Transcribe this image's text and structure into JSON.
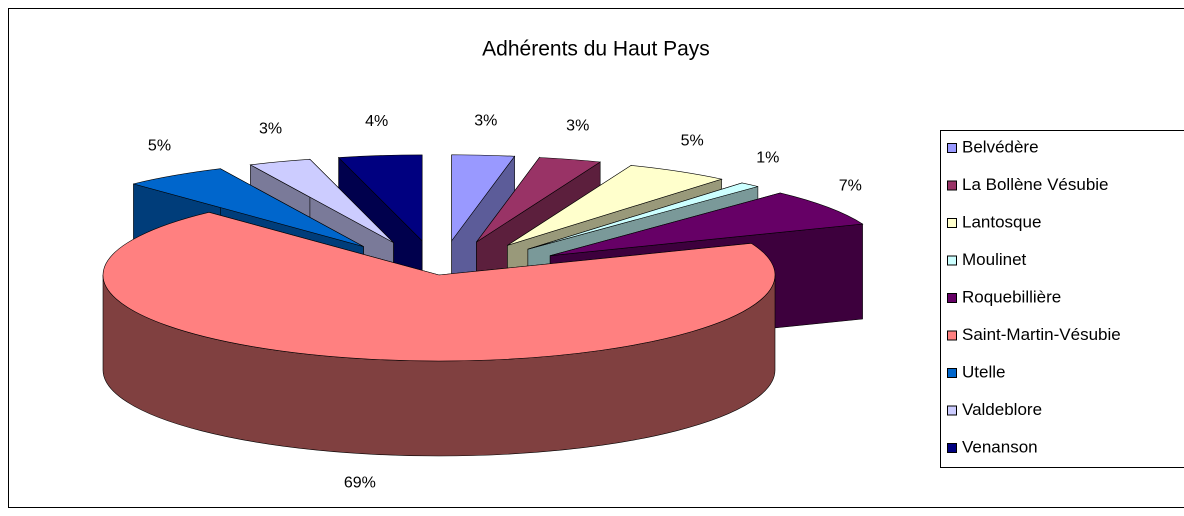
{
  "chart_data": {
    "type": "pie3d",
    "title": "Adhérents du Haut Pays",
    "categories": [
      "Belvédère",
      "La Bollène Vésubie",
      "Lantosque",
      "Moulinet",
      "Roquebillière",
      "Saint-Martin-Vésubie",
      "Utelle",
      "Valdeblore",
      "Venanson"
    ],
    "values": [
      3,
      3,
      5,
      1,
      7,
      69,
      5,
      3,
      4
    ],
    "value_labels": [
      "3%",
      "3%",
      "5%",
      "1%",
      "7%",
      "69%",
      "5%",
      "3%",
      "4%"
    ],
    "colors": [
      "#9999ff",
      "#993366",
      "#ffffcc",
      "#ccffff",
      "#660066",
      "#ff8080",
      "#0066cc",
      "#ccccff",
      "#000080"
    ],
    "legend": "right"
  }
}
